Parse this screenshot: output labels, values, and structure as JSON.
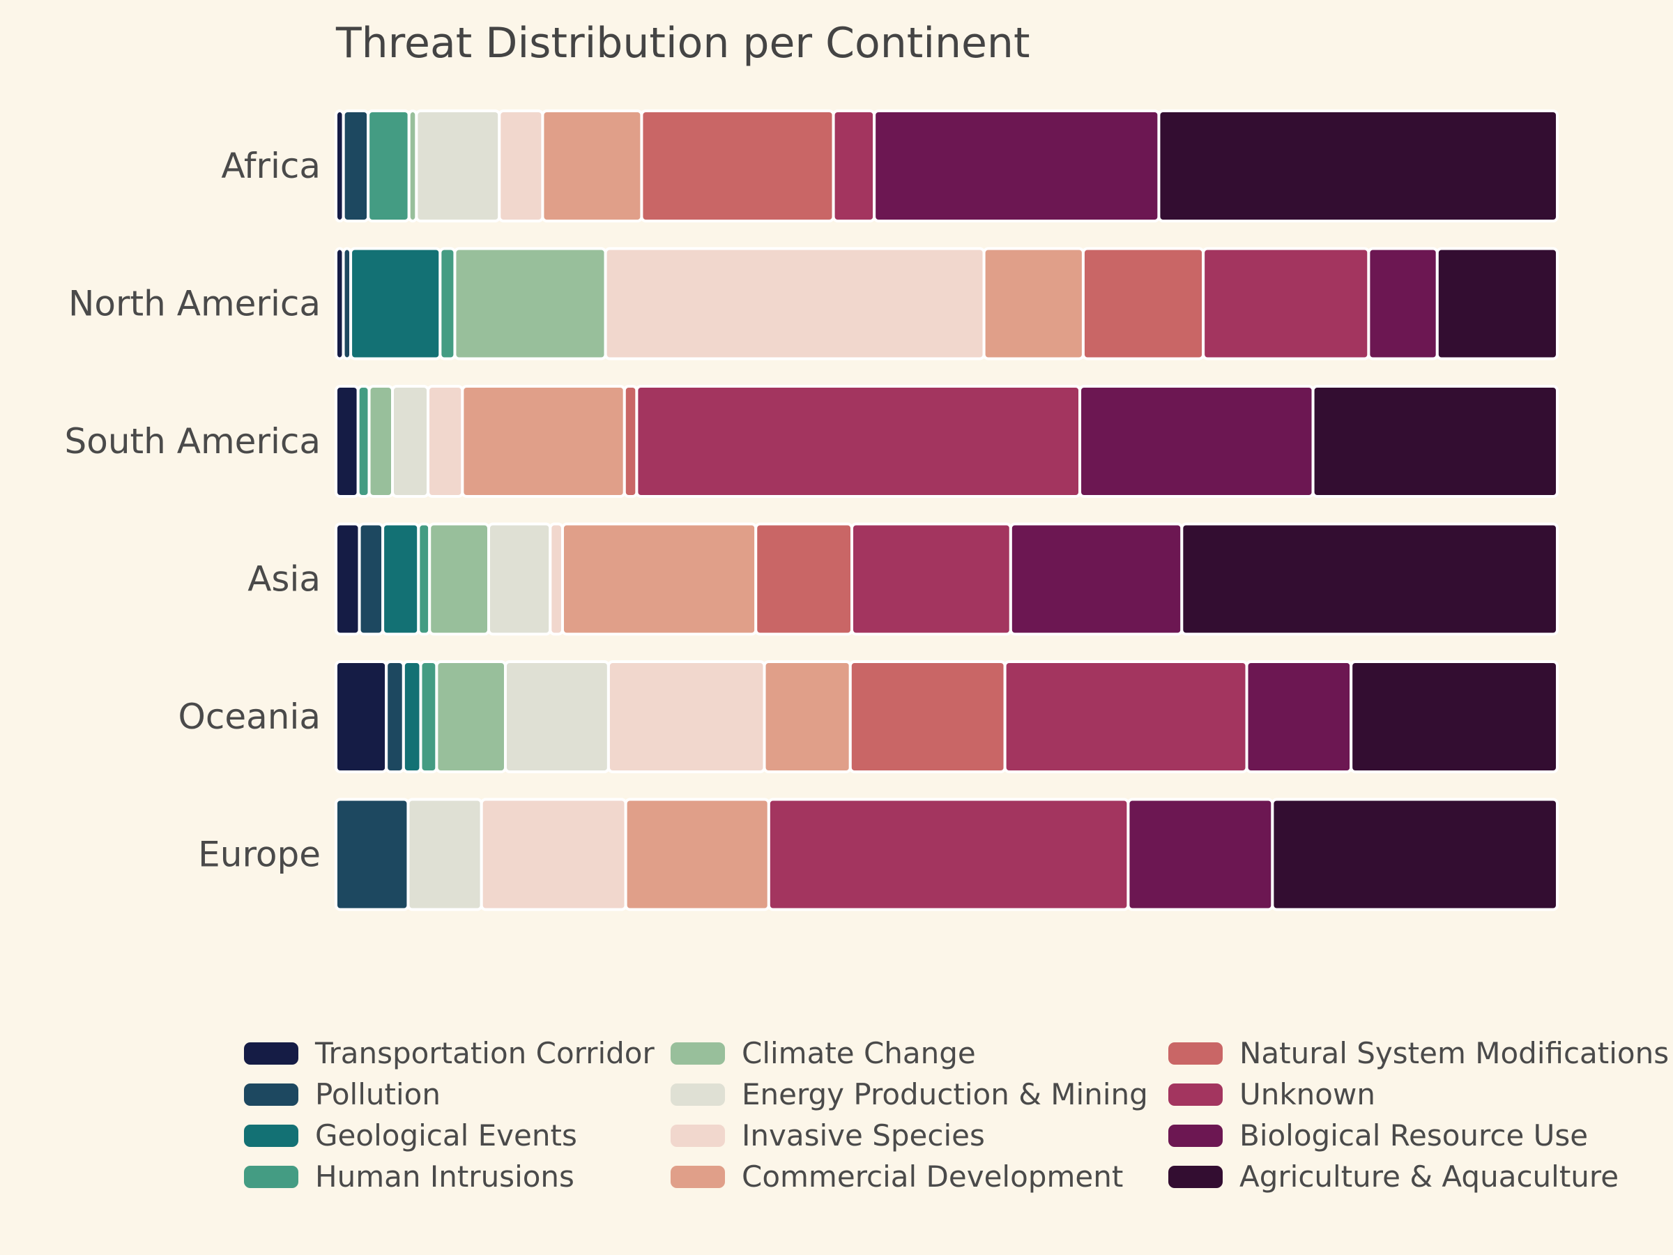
{
  "chart_data": {
    "type": "bar",
    "orientation": "horizontal",
    "stacked": true,
    "normalized": true,
    "title": "Threat Distribution per Continent",
    "xlabel": "",
    "ylabel": "",
    "grid": false,
    "legend_position": "bottom",
    "categories": [
      "Africa",
      "North America",
      "South America",
      "Asia",
      "Oceania",
      "Europe"
    ],
    "series": [
      {
        "name": "Transportation Corridor",
        "color": "#151c45",
        "values": [
          0.6,
          0.6,
          1.8,
          1.9,
          4.1,
          0.0
        ]
      },
      {
        "name": "Pollution",
        "color": "#1d4860",
        "values": [
          2.0,
          0.6,
          0.0,
          1.9,
          1.4,
          5.9
        ]
      },
      {
        "name": "Geological Events",
        "color": "#137174",
        "values": [
          0.0,
          7.3,
          0.0,
          2.9,
          1.4,
          0.0
        ]
      },
      {
        "name": "Human Intrusions",
        "color": "#449c83",
        "values": [
          3.3,
          1.2,
          0.9,
          0.9,
          1.3,
          0.0
        ]
      },
      {
        "name": "Climate Change",
        "color": "#98bf9b",
        "values": [
          0.6,
          12.3,
          1.9,
          4.8,
          5.6,
          0.0
        ]
      },
      {
        "name": "Energy Production & Mining",
        "color": "#dfe0d4",
        "values": [
          6.7,
          0.0,
          2.9,
          5.0,
          8.4,
          6.0
        ]
      },
      {
        "name": "Invasive Species",
        "color": "#f1d7cd",
        "values": [
          3.5,
          30.9,
          2.8,
          1.0,
          12.7,
          11.8
        ]
      },
      {
        "name": "Commercial Development",
        "color": "#e09f89",
        "values": [
          8.0,
          8.1,
          13.2,
          15.7,
          7.0,
          11.7
        ]
      },
      {
        "name": "Natural System Modifications",
        "color": "#c96666",
        "values": [
          15.5,
          9.8,
          1.0,
          7.8,
          12.6,
          0.0
        ]
      },
      {
        "name": "Unknown",
        "color": "#a3355f",
        "values": [
          3.3,
          13.5,
          36.1,
          12.9,
          19.7,
          29.4
        ]
      },
      {
        "name": "Biological Resource Use",
        "color": "#6c1752",
        "values": [
          23.0,
          5.6,
          19.0,
          13.9,
          8.5,
          11.8
        ]
      },
      {
        "name": "Agriculture & Aquaculture",
        "color": "#330d31",
        "values": [
          32.2,
          9.8,
          19.9,
          30.5,
          16.8,
          23.3
        ]
      }
    ]
  }
}
